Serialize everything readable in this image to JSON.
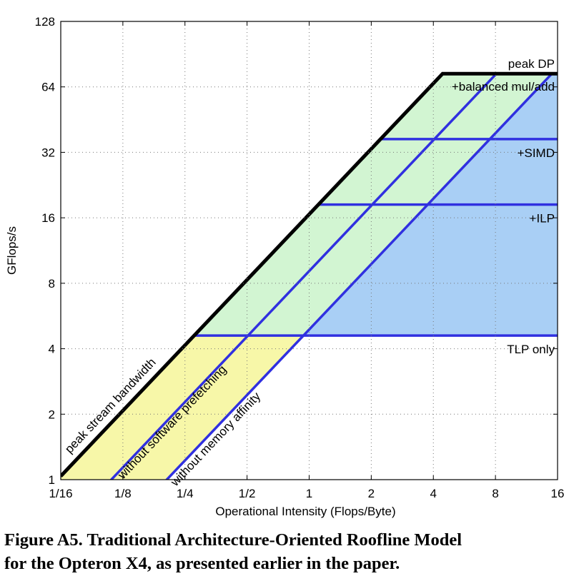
{
  "chart_data": {
    "type": "line",
    "title": "",
    "xlabel": "Operational Intensity (Flops/Byte)",
    "ylabel": "GFlops/s",
    "x_scale": "log2",
    "y_scale": "log2",
    "xlim": [
      0.0625,
      16
    ],
    "ylim": [
      1,
      128
    ],
    "x_ticks": [
      "1/16",
      "1/8",
      "1/4",
      "1/2",
      "1",
      "2",
      "4",
      "8",
      "16"
    ],
    "y_ticks": [
      "1",
      "2",
      "4",
      "8",
      "16",
      "32",
      "64",
      "128"
    ],
    "grid": "dotted",
    "ceilings": [
      {
        "name": "peak DP",
        "gflops": 73.6,
        "color": "#000000"
      },
      {
        "name": "+balanced mul/add",
        "gflops": 73.6,
        "color": "#3030e0"
      },
      {
        "name": "+SIMD",
        "gflops": 36.8,
        "color": "#3030e0"
      },
      {
        "name": "+ILP",
        "gflops": 18.4,
        "color": "#3030e0"
      },
      {
        "name": "TLP only",
        "gflops": 4.6,
        "color": "#3030e0"
      }
    ],
    "bandwidths": [
      {
        "name": "peak stream bandwidth",
        "gbytes_per_s": 16.6,
        "color": "#000000"
      },
      {
        "name": "without software prefetching",
        "gbytes_per_s": 9.1,
        "color": "#3030e0"
      },
      {
        "name": "without memory affinity",
        "gbytes_per_s": 4.9,
        "color": "#3030e0"
      }
    ],
    "region_colors": {
      "yellow": "#f7f7a8",
      "green": "#d2f5d2",
      "blue": "#a9cff5"
    }
  },
  "caption": {
    "line1": "Figure A5. Traditional Architecture-Oriented Roofline Model",
    "line2": "for the Opteron X4, as presented earlier in the paper."
  }
}
